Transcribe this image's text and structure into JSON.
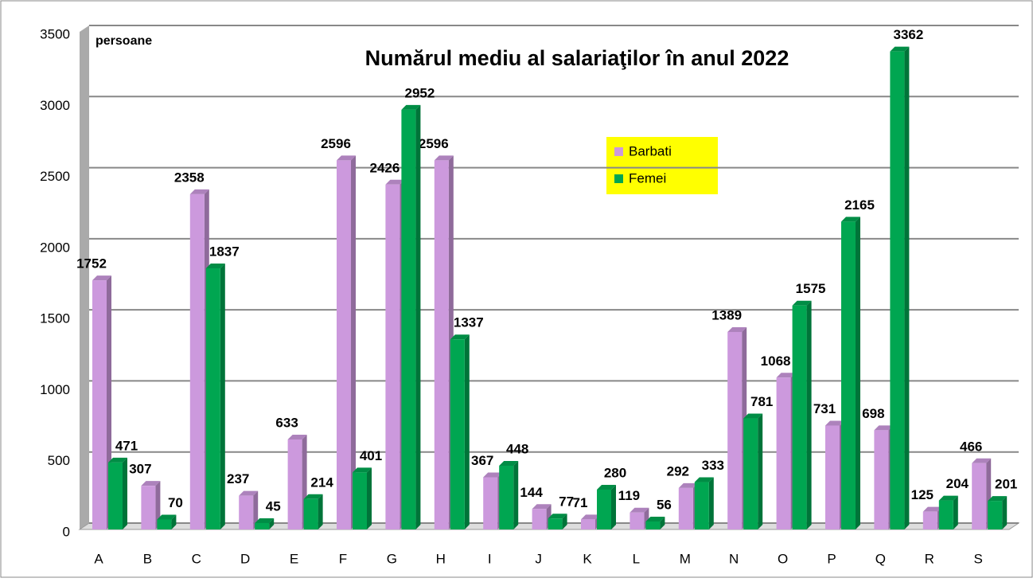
{
  "chart_data": {
    "type": "bar",
    "title": "Numărul mediu al salariaţilor în anul 2022",
    "annotation": "persoane",
    "categories": [
      "A",
      "B",
      "C",
      "D",
      "E",
      "F",
      "G",
      "H",
      "I",
      "J",
      "K",
      "L",
      "M",
      "N",
      "O",
      "P",
      "Q",
      "R",
      "S"
    ],
    "series": [
      {
        "name": "Barbati",
        "color": "#cc99dd",
        "values": [
          1752,
          307,
          2358,
          237,
          633,
          2596,
          2426,
          2596,
          367,
          144,
          71,
          119,
          292,
          1389,
          1068,
          731,
          698,
          125,
          466
        ]
      },
      {
        "name": "Femei",
        "color": "#00a651",
        "values": [
          471,
          70,
          1837,
          45,
          214,
          401,
          2952,
          1337,
          448,
          77,
          280,
          56,
          333,
          781,
          1575,
          2165,
          3362,
          204,
          201
        ]
      }
    ],
    "ylim": [
      0,
      3500
    ],
    "yticks": [
      0,
      500,
      1000,
      1500,
      2000,
      2500,
      3000,
      3500
    ],
    "grid": true
  }
}
